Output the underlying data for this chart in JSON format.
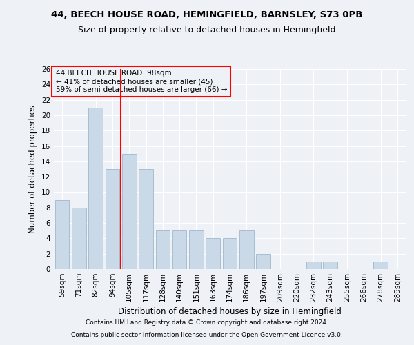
{
  "title1": "44, BEECH HOUSE ROAD, HEMINGFIELD, BARNSLEY, S73 0PB",
  "title2": "Size of property relative to detached houses in Hemingfield",
  "xlabel": "Distribution of detached houses by size in Hemingfield",
  "ylabel": "Number of detached properties",
  "categories": [
    "59sqm",
    "71sqm",
    "82sqm",
    "94sqm",
    "105sqm",
    "117sqm",
    "128sqm",
    "140sqm",
    "151sqm",
    "163sqm",
    "174sqm",
    "186sqm",
    "197sqm",
    "209sqm",
    "220sqm",
    "232sqm",
    "243sqm",
    "255sqm",
    "266sqm",
    "278sqm",
    "289sqm"
  ],
  "values": [
    9,
    8,
    21,
    13,
    15,
    13,
    5,
    5,
    5,
    4,
    4,
    5,
    2,
    0,
    0,
    1,
    1,
    0,
    0,
    1,
    0
  ],
  "bar_color": "#c9d9e8",
  "bar_edge_color": "#a0b8cc",
  "red_line_x": 3.5,
  "annotation_line1": "44 BEECH HOUSE ROAD: 98sqm",
  "annotation_line2": "← 41% of detached houses are smaller (45)",
  "annotation_line3": "59% of semi-detached houses are larger (66) →",
  "ylim": [
    0,
    26
  ],
  "yticks": [
    0,
    2,
    4,
    6,
    8,
    10,
    12,
    14,
    16,
    18,
    20,
    22,
    24,
    26
  ],
  "footer1": "Contains HM Land Registry data © Crown copyright and database right 2024.",
  "footer2": "Contains public sector information licensed under the Open Government Licence v3.0.",
  "background_color": "#eef2f7",
  "grid_color": "#ffffff",
  "title1_fontsize": 9.5,
  "title2_fontsize": 9,
  "axis_label_fontsize": 8.5,
  "tick_fontsize": 7.5,
  "annotation_fontsize": 7.5,
  "footer_fontsize": 6.5
}
